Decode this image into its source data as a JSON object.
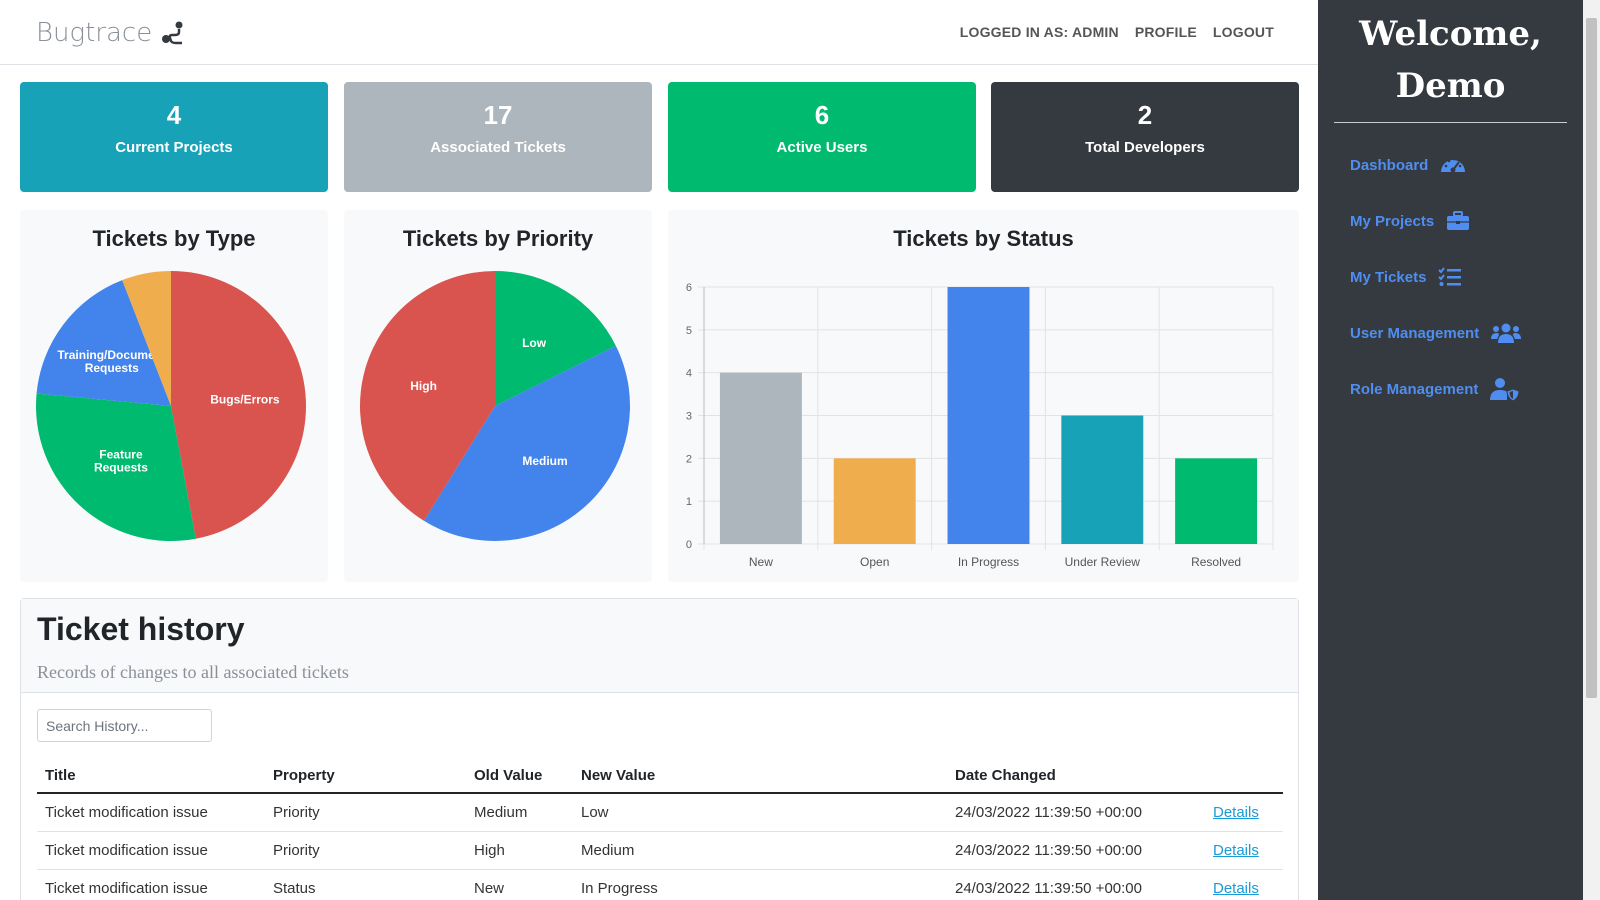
{
  "navbar": {
    "brand": "Bugtrace",
    "links": [
      "LOGGED IN AS: ADMIN",
      "PROFILE",
      "LOGOUT"
    ]
  },
  "sidebar": {
    "welcome_line1": "Welcome,",
    "welcome_line2": "Demo",
    "items": [
      {
        "label": "Dashboard",
        "icon": "dashboard-gauge-icon"
      },
      {
        "label": "My Projects",
        "icon": "briefcase-icon"
      },
      {
        "label": "My Tickets",
        "icon": "checklist-icon"
      },
      {
        "label": "User Management",
        "icon": "users-icon"
      },
      {
        "label": "Role Management",
        "icon": "user-shield-icon"
      }
    ]
  },
  "stats": [
    {
      "value": "4",
      "label": "Current Projects",
      "color": "#17a2b8"
    },
    {
      "value": "17",
      "label": "Associated Tickets",
      "color": "#adb5bd"
    },
    {
      "value": "6",
      "label": "Active Users",
      "color": "#00ba6f"
    },
    {
      "value": "2",
      "label": "Total Developers",
      "color": "#343a40"
    }
  ],
  "charts": {
    "type_title": "Tickets by Type",
    "priority_title": "Tickets by Priority",
    "status_title": "Tickets by Status"
  },
  "chart_data": [
    {
      "type": "pie",
      "title": "Tickets by Type",
      "categories": [
        "Bugs/Errors",
        "Feature Requests",
        "Training/Document Requests",
        ""
      ],
      "values": [
        8,
        5,
        3,
        1
      ],
      "colors": [
        "#d9534f",
        "#00ba6f",
        "#4283ec",
        "#f0ad4e"
      ]
    },
    {
      "type": "pie",
      "title": "Tickets by Priority",
      "categories": [
        "Low",
        "Medium",
        "High"
      ],
      "values": [
        3,
        7,
        7
      ],
      "colors": [
        "#00ba6f",
        "#4283ec",
        "#d9534f"
      ]
    },
    {
      "type": "bar",
      "title": "Tickets by Status",
      "categories": [
        "New",
        "Open",
        "In Progress",
        "Under Review",
        "Resolved"
      ],
      "values": [
        4,
        2,
        6,
        3,
        2
      ],
      "colors": [
        "#adb5bd",
        "#f0ad4e",
        "#4283ec",
        "#17a2b8",
        "#00ba6f"
      ],
      "ylim": [
        0,
        6
      ],
      "yticks": [
        "0",
        "1",
        "2",
        "3",
        "4",
        "5",
        "6"
      ],
      "grid": true
    }
  ],
  "history": {
    "title": "Ticket history",
    "subtitle": "Records of changes to all associated tickets",
    "search_placeholder": "Search History...",
    "columns": [
      "Title",
      "Property",
      "Old Value",
      "New Value",
      "Date Changed",
      ""
    ],
    "rows": [
      [
        "Ticket modification issue",
        "Priority",
        "Medium",
        "Low",
        "24/03/2022 11:39:50 +00:00",
        "Details"
      ],
      [
        "Ticket modification issue",
        "Priority",
        "High",
        "Medium",
        "24/03/2022 11:39:50 +00:00",
        "Details"
      ],
      [
        "Ticket modification issue",
        "Status",
        "New",
        "In Progress",
        "24/03/2022 11:39:50 +00:00",
        "Details"
      ]
    ]
  }
}
